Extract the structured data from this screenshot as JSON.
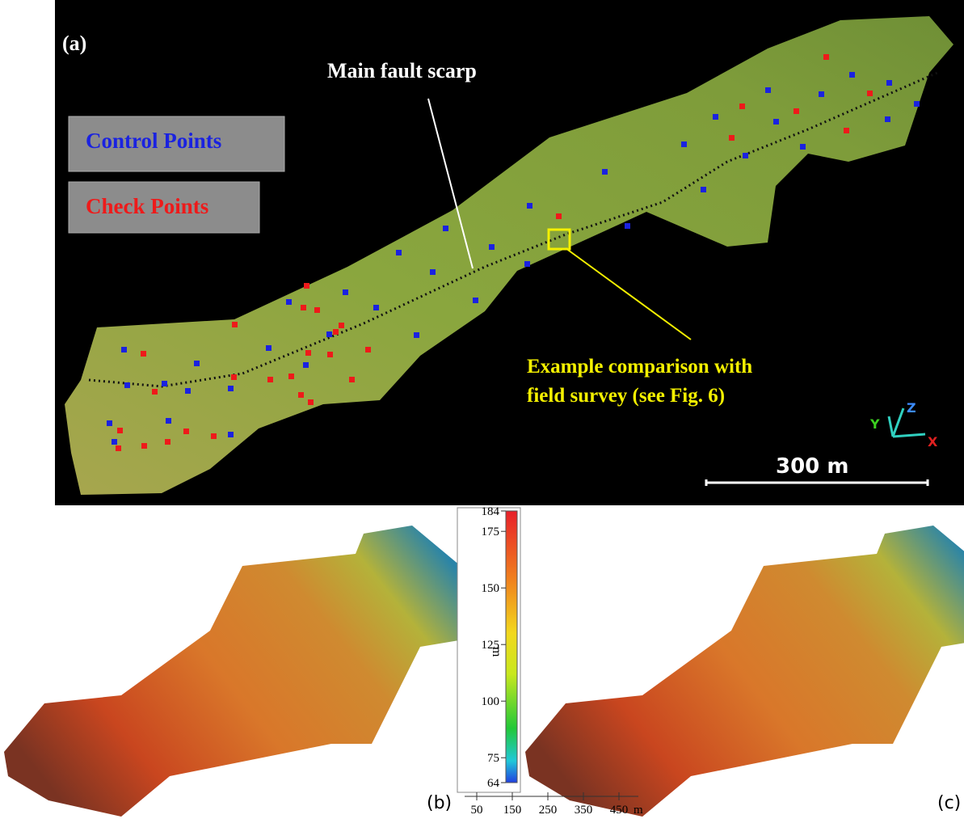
{
  "panel_a": {
    "label": "(a)",
    "annotation": "Main fault scarp",
    "legend": [
      "Control Points",
      "Check Points"
    ],
    "callout": [
      "Example comparison with",
      "field survey (see Fig. 6)"
    ],
    "scale_bar": "300 m",
    "axes": [
      "Y",
      "Z",
      "X"
    ]
  },
  "panel_b": {
    "label": "(b)"
  },
  "panel_c": {
    "label": "(c)"
  },
  "colorbar": {
    "lim": [
      64,
      184
    ],
    "ticks": [
      184,
      175,
      150,
      125,
      100,
      75,
      64
    ],
    "unit": "m"
  },
  "distance_scale": {
    "xlim": [
      0,
      500
    ],
    "ticks": [
      50,
      150,
      250,
      350,
      450
    ],
    "unit": "m"
  }
}
